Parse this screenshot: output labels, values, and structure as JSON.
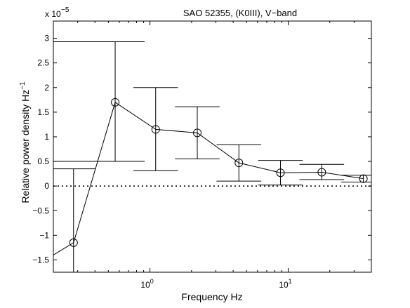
{
  "chart_data": {
    "type": "line",
    "title": "SAO 52355, (K0III), V−band",
    "xlabel": "Frequency  Hz",
    "ylabel": "Relative power density  Hz",
    "ylabel_superscript": "−1",
    "y_multiplier": "x 10",
    "y_multiplier_exponent": "−5",
    "x_scale": "log",
    "xlim": [
      0.2,
      40
    ],
    "ylim": [
      -1.75,
      3.35
    ],
    "x_ticks": [
      {
        "value": 1,
        "base": "10",
        "exp": "0"
      },
      {
        "value": 10,
        "base": "10",
        "exp": "1"
      }
    ],
    "y_ticks": [
      3,
      2.5,
      2,
      1.5,
      1,
      0.5,
      0,
      -0.5,
      -1,
      -1.5
    ],
    "y_tick_labels": [
      "3",
      "2.5",
      "2",
      "1.5",
      "1",
      "0.5",
      "0",
      "−0.5",
      "−1",
      "−1.5"
    ],
    "zero_line": "dotted",
    "grid": false,
    "series": [
      {
        "marker": "open-circle",
        "color": "#000000",
        "x": [
          0.28,
          0.56,
          1.1,
          2.2,
          4.4,
          8.8,
          17.5,
          35
        ],
        "y": [
          -1.15,
          1.7,
          1.15,
          1.08,
          0.47,
          0.27,
          0.28,
          0.15
        ],
        "err_low": [
          -1.85,
          0.5,
          0.31,
          0.55,
          0.1,
          0.02,
          0.13,
          0.08
        ],
        "err_high": [
          0.35,
          2.93,
          2.0,
          1.61,
          0.84,
          0.52,
          0.44,
          0.22
        ]
      }
    ]
  }
}
